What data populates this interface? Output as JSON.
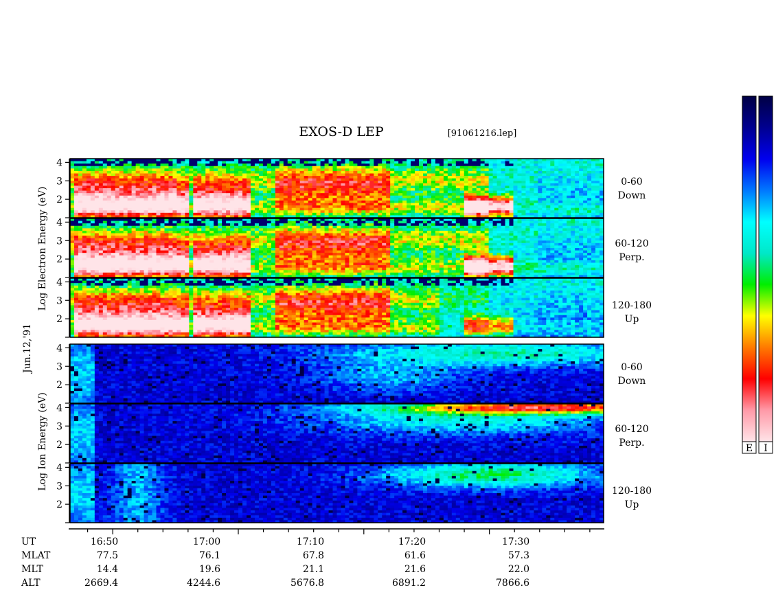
{
  "chart_data": {
    "type": "heatmap",
    "title": "EXOS-D LEP",
    "file_label": "[91061216.lep]",
    "date_label": "Jun.12,'91",
    "electron_ylabel": "Log Electron Energy (eV)",
    "ion_ylabel": "Log Ion Energy (eV)",
    "y_ticks": [
      "1",
      "2",
      "3",
      "4"
    ],
    "ylim": [
      1,
      4.2
    ],
    "x_ticks": [
      "16:50",
      "17:00",
      "17:10",
      "17:20",
      "17:30"
    ],
    "x_range_minutes": [
      16.6,
      16.6,
      59.1
    ],
    "time_axis": {
      "start": "16:46.6",
      "end": "17:39.1"
    },
    "panels": [
      {
        "species": "electron",
        "angle": "0-60",
        "direction": "Down"
      },
      {
        "species": "electron",
        "angle": "60-120",
        "direction": "Perp."
      },
      {
        "species": "electron",
        "angle": "120-180",
        "direction": "Up"
      },
      {
        "species": "ion",
        "angle": "0-60",
        "direction": "Down"
      },
      {
        "species": "ion",
        "angle": "60-120",
        "direction": "Perp."
      },
      {
        "species": "ion",
        "angle": "120-180",
        "direction": "Up"
      }
    ],
    "ephemeris_labels": [
      "UT",
      "MLAT",
      "MLT",
      "ALT"
    ],
    "ephemeris": {
      "MLAT": [
        "77.5",
        "76.1",
        "67.8",
        "61.6",
        "57.3"
      ],
      "MLT": [
        "14.4",
        "19.6",
        "21.1",
        "21.6",
        "22.0"
      ],
      "ALT": [
        "2669.4",
        "4244.6",
        "5676.8",
        "6891.2",
        "7866.6"
      ]
    },
    "colorbar_labels": [
      "E",
      "I"
    ],
    "colorscale": [
      "#ffe4e8",
      "#ff9aa8",
      "#ff0000",
      "#ff7a00",
      "#ffff00",
      "#00ee00",
      "#00e8c8",
      "#00ffff",
      "#0078ff",
      "#0000ee",
      "#000090",
      "#000044"
    ]
  }
}
